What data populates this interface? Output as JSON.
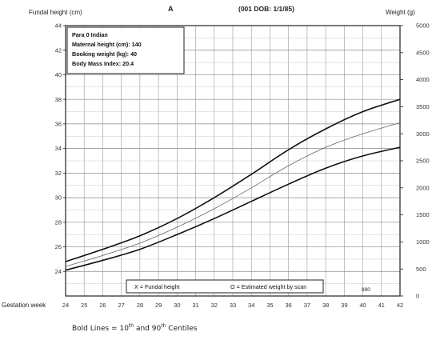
{
  "header": {
    "left_axis_title": "Fundal height (cm)",
    "center_letter": "A",
    "center_id": "(001 DOB: 1/1/85)",
    "right_axis_title": "Weight (g)"
  },
  "info_box": {
    "lines": [
      "Para 0   Indian",
      "Maternal height (cm): 140",
      "Booking weight (kg): 40",
      "Body Mass Index:  20.4"
    ]
  },
  "legend": {
    "fundal": "X = Fundal height",
    "weight": "O = Estimated weight by scan"
  },
  "corner_mark": "890",
  "x_axis_label": "Gestation week",
  "footnote": {
    "prefix": "Bold Lines  =  10",
    "sup1": "th",
    "middle": " and 90",
    "sup2": "th",
    "suffix": " Centiles"
  },
  "chart_data": {
    "type": "line",
    "x_label": "Gestation week",
    "y_label": "Fundal height (cm)",
    "y2_label": "Weight (g)",
    "x_ticks": [
      24,
      25,
      26,
      27,
      28,
      29,
      30,
      31,
      32,
      33,
      34,
      35,
      36,
      37,
      38,
      39,
      40,
      41,
      42
    ],
    "y_ticks": [
      24,
      26,
      28,
      30,
      32,
      34,
      36,
      38,
      40,
      42,
      44
    ],
    "y_tick_labels": [
      "24",
      "26",
      "28",
      "30",
      "32",
      "34",
      "36",
      "38",
      "40",
      "42",
      "44"
    ],
    "y2_ticks": [
      0,
      500,
      1000,
      1500,
      2000,
      2500,
      3000,
      3500,
      4000,
      4500,
      5000
    ],
    "x_range": [
      24,
      42
    ],
    "y_range": [
      22,
      44
    ],
    "y2_range": [
      0,
      5000
    ],
    "grid": true,
    "series": [
      {
        "style": "bold",
        "x": [
          24,
          26,
          28,
          30,
          32,
          34,
          36,
          38,
          40,
          42
        ],
        "y": [
          24.8,
          25.8,
          26.9,
          28.3,
          30.0,
          31.9,
          33.9,
          35.6,
          37.0,
          38.0
        ]
      },
      {
        "style": "thin",
        "x": [
          24,
          26,
          28,
          30,
          32,
          34,
          36,
          38,
          40,
          42
        ],
        "y": [
          24.4,
          25.3,
          26.3,
          27.6,
          29.1,
          30.8,
          32.6,
          34.1,
          35.2,
          36.1
        ]
      },
      {
        "style": "bold",
        "x": [
          24,
          26,
          28,
          30,
          32,
          34,
          36,
          38,
          40,
          42
        ],
        "y": [
          24.1,
          24.9,
          25.8,
          27.0,
          28.3,
          29.7,
          31.1,
          32.4,
          33.4,
          34.1
        ]
      }
    ]
  }
}
